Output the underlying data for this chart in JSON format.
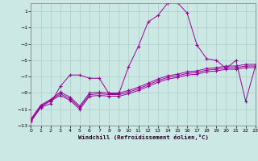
{
  "xlabel": "Windchill (Refroidissement éolien,°C)",
  "background_color": "#cce8e4",
  "grid_color": "#aaccca",
  "line_color": "#990099",
  "xlim": [
    0,
    23
  ],
  "ylim": [
    -13,
    2
  ],
  "yticks": [
    1,
    -1,
    -3,
    -5,
    -7,
    -9,
    -11,
    -13
  ],
  "xticks": [
    0,
    1,
    2,
    3,
    4,
    5,
    6,
    7,
    8,
    9,
    10,
    11,
    12,
    13,
    14,
    15,
    16,
    17,
    18,
    19,
    20,
    21,
    22,
    23
  ],
  "curve1_x": [
    0,
    1,
    2,
    3,
    4,
    5,
    6,
    7,
    8,
    9,
    10,
    11,
    12,
    13,
    14,
    15,
    16,
    17,
    18,
    19,
    20,
    21,
    22,
    23
  ],
  "curve1_y": [
    -12.5,
    -10.8,
    -10.3,
    -8.2,
    -6.8,
    -6.8,
    -7.2,
    -7.2,
    -9.1,
    -9.1,
    -5.8,
    -3.3,
    -0.3,
    0.5,
    2.0,
    2.1,
    0.8,
    -3.1,
    -4.8,
    -5.0,
    -6.0,
    -5.0,
    -10.0,
    -5.7
  ],
  "curve2_x": [
    0,
    1,
    2,
    3,
    4,
    5,
    6,
    7,
    8,
    9,
    10,
    11,
    12,
    13,
    14,
    15,
    16,
    17,
    18,
    19,
    20,
    21,
    22,
    23
  ],
  "curve2_y": [
    -12.2,
    -10.5,
    -9.8,
    -8.9,
    -9.5,
    -10.6,
    -9.0,
    -8.9,
    -9.0,
    -9.0,
    -8.7,
    -8.3,
    -7.8,
    -7.3,
    -6.9,
    -6.7,
    -6.4,
    -6.3,
    -6.0,
    -5.9,
    -5.7,
    -5.7,
    -5.5,
    -5.5
  ],
  "curve3_x": [
    0,
    1,
    2,
    3,
    4,
    5,
    6,
    7,
    8,
    9,
    10,
    11,
    12,
    13,
    14,
    15,
    16,
    17,
    18,
    19,
    20,
    21,
    22,
    23
  ],
  "curve3_y": [
    -12.3,
    -10.6,
    -9.9,
    -9.1,
    -9.7,
    -10.8,
    -9.2,
    -9.1,
    -9.2,
    -9.2,
    -8.9,
    -8.5,
    -8.0,
    -7.5,
    -7.1,
    -6.9,
    -6.6,
    -6.5,
    -6.2,
    -6.1,
    -5.9,
    -5.9,
    -5.7,
    -5.7
  ],
  "curve4_x": [
    0,
    1,
    2,
    3,
    4,
    5,
    6,
    7,
    8,
    9,
    10,
    11,
    12,
    13,
    14,
    15,
    16,
    17,
    18,
    19,
    20,
    21,
    22,
    23
  ],
  "curve4_y": [
    -12.4,
    -10.7,
    -10.0,
    -9.3,
    -9.9,
    -11.0,
    -9.4,
    -9.3,
    -9.4,
    -9.4,
    -9.1,
    -8.7,
    -8.2,
    -7.7,
    -7.3,
    -7.1,
    -6.8,
    -6.7,
    -6.4,
    -6.3,
    -6.1,
    -6.1,
    -5.9,
    -5.9
  ]
}
